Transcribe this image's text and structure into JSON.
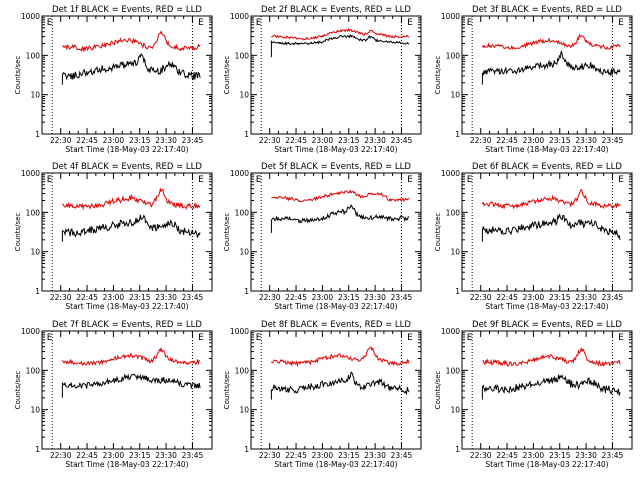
{
  "chart_data": [
    {
      "type": "line",
      "title": "Det 1f BLACK = Events, RED = LLD",
      "ylabel": "Counts/sec",
      "xlabel": "Start Time (18-May-03 22:17:40)",
      "yscale": "log",
      "ylim": [
        1,
        1000
      ],
      "yticks": [
        "1",
        "10",
        "100",
        "1000"
      ],
      "xticks": [
        "22:30",
        "22:45",
        "23:00",
        "23:15",
        "23:30",
        "23:45"
      ],
      "markers": [
        "E",
        "E"
      ],
      "grid": false,
      "series": [
        {
          "color": "#000000",
          "base": [
            30,
            30,
            35,
            38,
            45,
            50,
            55,
            58,
            70,
            40,
            42,
            60,
            35,
            30,
            30
          ],
          "spikes": [
            [
              0.58,
              1.3
            ]
          ],
          "start_value": 18,
          "noise": 0.1
        },
        {
          "color": "#e00000",
          "base": [
            160,
            160,
            150,
            155,
            170,
            200,
            240,
            245,
            190,
            150,
            260,
            170,
            150,
            150,
            165
          ],
          "spikes": [
            [
              0.72,
              1.55
            ]
          ],
          "noise": 0.06
        }
      ]
    },
    {
      "type": "line",
      "title": "Det 2f BLACK = Events, RED = LLD",
      "ylabel": "Counts/sec",
      "xlabel": "Start Time (18-May-03 22:17:40)",
      "yscale": "log",
      "ylim": [
        1,
        1000
      ],
      "yticks": [
        "1",
        "10",
        "100",
        "1000"
      ],
      "xticks": [
        "22:30",
        "22:45",
        "23:00",
        "23:15",
        "23:30",
        "23:45"
      ],
      "markers": [
        "E",
        "E"
      ],
      "grid": false,
      "series": [
        {
          "color": "#000000",
          "base": [
            210,
            200,
            200,
            200,
            205,
            215,
            260,
            300,
            310,
            250,
            230,
            240,
            215,
            210,
            200
          ],
          "spikes": [
            [
              0.72,
              1.3
            ]
          ],
          "start_value": 90,
          "noise": 0.03
        },
        {
          "color": "#e00000",
          "base": [
            310,
            300,
            280,
            260,
            270,
            300,
            360,
            420,
            440,
            360,
            320,
            350,
            300,
            300,
            310
          ],
          "spikes": [
            [
              0.72,
              1.3
            ]
          ],
          "noise": 0.03
        }
      ]
    },
    {
      "type": "line",
      "title": "Det 3f BLACK = Events, RED = LLD",
      "ylabel": "Counts/sec",
      "xlabel": "Start Time (18-May-03 22:17:40)",
      "yscale": "log",
      "ylim": [
        1,
        1000
      ],
      "yticks": [
        "1",
        "10",
        "100",
        "1000"
      ],
      "xticks": [
        "22:30",
        "22:45",
        "23:00",
        "23:15",
        "23:30",
        "23:45"
      ],
      "markers": [
        "E",
        "E"
      ],
      "grid": false,
      "series": [
        {
          "color": "#000000",
          "base": [
            38,
            38,
            40,
            40,
            45,
            50,
            55,
            60,
            70,
            50,
            50,
            55,
            40,
            38,
            36
          ],
          "spikes": [
            [
              0.58,
              1.5
            ]
          ],
          "start_value": 18,
          "noise": 0.09
        },
        {
          "color": "#e00000",
          "base": [
            180,
            175,
            165,
            160,
            170,
            200,
            230,
            240,
            200,
            170,
            250,
            190,
            165,
            160,
            175
          ],
          "spikes": [
            [
              0.72,
              1.4
            ]
          ],
          "noise": 0.05
        }
      ]
    },
    {
      "type": "line",
      "title": "Det 4f BLACK = Events, RED = LLD",
      "ylabel": "Counts/sec",
      "xlabel": "Start Time (18-May-03 22:17:40)",
      "yscale": "log",
      "ylim": [
        1,
        1000
      ],
      "yticks": [
        "1",
        "10",
        "100",
        "1000"
      ],
      "xticks": [
        "22:30",
        "22:45",
        "23:00",
        "23:15",
        "23:30",
        "23:45"
      ],
      "markers": [
        "E",
        "E"
      ],
      "grid": false,
      "series": [
        {
          "color": "#000000",
          "base": [
            30,
            30,
            32,
            35,
            40,
            45,
            50,
            55,
            65,
            42,
            42,
            55,
            35,
            30,
            28
          ],
          "spikes": [
            [
              0.58,
              1.3
            ]
          ],
          "start_value": 18,
          "noise": 0.1
        },
        {
          "color": "#e00000",
          "base": [
            150,
            150,
            140,
            140,
            150,
            180,
            210,
            230,
            190,
            150,
            250,
            170,
            145,
            140,
            150
          ],
          "spikes": [
            [
              0.72,
              1.5
            ]
          ],
          "noise": 0.07
        }
      ]
    },
    {
      "type": "line",
      "title": "Det 5f BLACK = Events, RED = LLD",
      "ylabel": "Counts/sec",
      "xlabel": "Start Time (18-May-03 22:17:40)",
      "yscale": "log",
      "ylim": [
        1,
        1000
      ],
      "yticks": [
        "1",
        "10",
        "100",
        "1000"
      ],
      "xticks": [
        "22:30",
        "22:45",
        "23:00",
        "23:15",
        "23:30",
        "23:45"
      ],
      "markers": [
        "E",
        "E"
      ],
      "grid": false,
      "series": [
        {
          "color": "#000000",
          "base": [
            70,
            70,
            65,
            60,
            62,
            70,
            85,
            100,
            110,
            75,
            70,
            80,
            70,
            70,
            68
          ],
          "spikes": [
            [
              0.58,
              1.4
            ]
          ],
          "start_value": 30,
          "noise": 0.06
        },
        {
          "color": "#e00000",
          "base": [
            250,
            240,
            220,
            200,
            210,
            240,
            280,
            320,
            340,
            260,
            230,
            300,
            210,
            205,
            215
          ],
          "spikes": [
            [
              0.72,
              1.3
            ]
          ],
          "noise": 0.04
        }
      ]
    },
    {
      "type": "line",
      "title": "Det 6f BLACK = Events, RED = LLD",
      "ylabel": "Counts/sec",
      "xlabel": "Start Time (18-May-03 22:17:40)",
      "yscale": "log",
      "ylim": [
        1,
        1000
      ],
      "yticks": [
        "1",
        "10",
        "100",
        "1000"
      ],
      "xticks": [
        "22:30",
        "22:45",
        "23:00",
        "23:15",
        "23:30",
        "23:45"
      ],
      "markers": [
        "E",
        "E"
      ],
      "grid": false,
      "series": [
        {
          "color": "#000000",
          "base": [
            35,
            35,
            32,
            35,
            40,
            45,
            50,
            55,
            65,
            45,
            45,
            60,
            38,
            32,
            25
          ],
          "spikes": [
            [
              0.58,
              1.3
            ],
            [
              0.7,
              1.25
            ]
          ],
          "start_value": 18,
          "noise": 0.1
        },
        {
          "color": "#e00000",
          "base": [
            160,
            160,
            150,
            145,
            155,
            180,
            210,
            230,
            190,
            160,
            240,
            170,
            150,
            145,
            160
          ],
          "spikes": [
            [
              0.72,
              1.5
            ]
          ],
          "noise": 0.06
        }
      ]
    },
    {
      "type": "line",
      "title": "Det 7f BLACK = Events, RED = LLD",
      "ylabel": "Counts/sec",
      "xlabel": "Start Time (18-May-03 22:17:40)",
      "yscale": "log",
      "ylim": [
        1,
        1000
      ],
      "yticks": [
        "1",
        "10",
        "100",
        "1000"
      ],
      "xticks": [
        "22:30",
        "22:45",
        "23:00",
        "23:15",
        "23:30",
        "23:45"
      ],
      "markers": [
        "E",
        "E"
      ],
      "grid": false,
      "series": [
        {
          "color": "#000000",
          "base": [
            42,
            42,
            40,
            42,
            48,
            55,
            62,
            70,
            68,
            55,
            55,
            60,
            45,
            42,
            40
          ],
          "spikes": [],
          "start_value": 20,
          "noise": 0.08
        },
        {
          "color": "#e00000",
          "base": [
            165,
            160,
            150,
            150,
            160,
            190,
            220,
            240,
            210,
            170,
            260,
            185,
            155,
            150,
            165
          ],
          "spikes": [
            [
              0.72,
              1.3
            ]
          ],
          "noise": 0.05
        }
      ]
    },
    {
      "type": "line",
      "title": "Det 8f BLACK = Events, RED = LLD",
      "ylabel": "Counts/sec",
      "xlabel": "Start Time (18-May-03 22:17:40)",
      "yscale": "log",
      "ylim": [
        1,
        1000
      ],
      "yticks": [
        "1",
        "10",
        "100",
        "1000"
      ],
      "xticks": [
        "22:30",
        "22:45",
        "23:00",
        "23:15",
        "23:30",
        "23:45"
      ],
      "markers": [
        "E",
        "E"
      ],
      "grid": false,
      "series": [
        {
          "color": "#000000",
          "base": [
            35,
            35,
            32,
            33,
            38,
            42,
            48,
            52,
            60,
            40,
            40,
            52,
            35,
            33,
            30
          ],
          "spikes": [
            [
              0.58,
              1.3
            ]
          ],
          "start_value": 18,
          "noise": 0.09
        },
        {
          "color": "#e00000",
          "base": [
            170,
            165,
            150,
            150,
            160,
            190,
            220,
            240,
            200,
            170,
            270,
            190,
            155,
            150,
            165
          ],
          "spikes": [
            [
              0.72,
              1.5
            ]
          ],
          "noise": 0.05
        }
      ]
    },
    {
      "type": "line",
      "title": "Det 9f BLACK = Events, RED = LLD",
      "ylabel": "Counts/sec",
      "xlabel": "Start Time (18-May-03 22:17:40)",
      "yscale": "log",
      "ylim": [
        1,
        1000
      ],
      "yticks": [
        "1",
        "10",
        "100",
        "1000"
      ],
      "xticks": [
        "22:30",
        "22:45",
        "23:00",
        "23:15",
        "23:30",
        "23:45"
      ],
      "markers": [
        "E",
        "E"
      ],
      "grid": false,
      "series": [
        {
          "color": "#000000",
          "base": [
            35,
            35,
            32,
            35,
            40,
            45,
            50,
            55,
            62,
            45,
            42,
            55,
            35,
            32,
            28
          ],
          "spikes": [
            [
              0.58,
              1.3
            ]
          ],
          "start_value": 18,
          "noise": 0.1
        },
        {
          "color": "#e00000",
          "base": [
            165,
            160,
            150,
            145,
            155,
            180,
            210,
            230,
            190,
            160,
            245,
            170,
            150,
            145,
            160
          ],
          "spikes": [
            [
              0.72,
              1.5
            ]
          ],
          "noise": 0.06
        }
      ]
    }
  ]
}
